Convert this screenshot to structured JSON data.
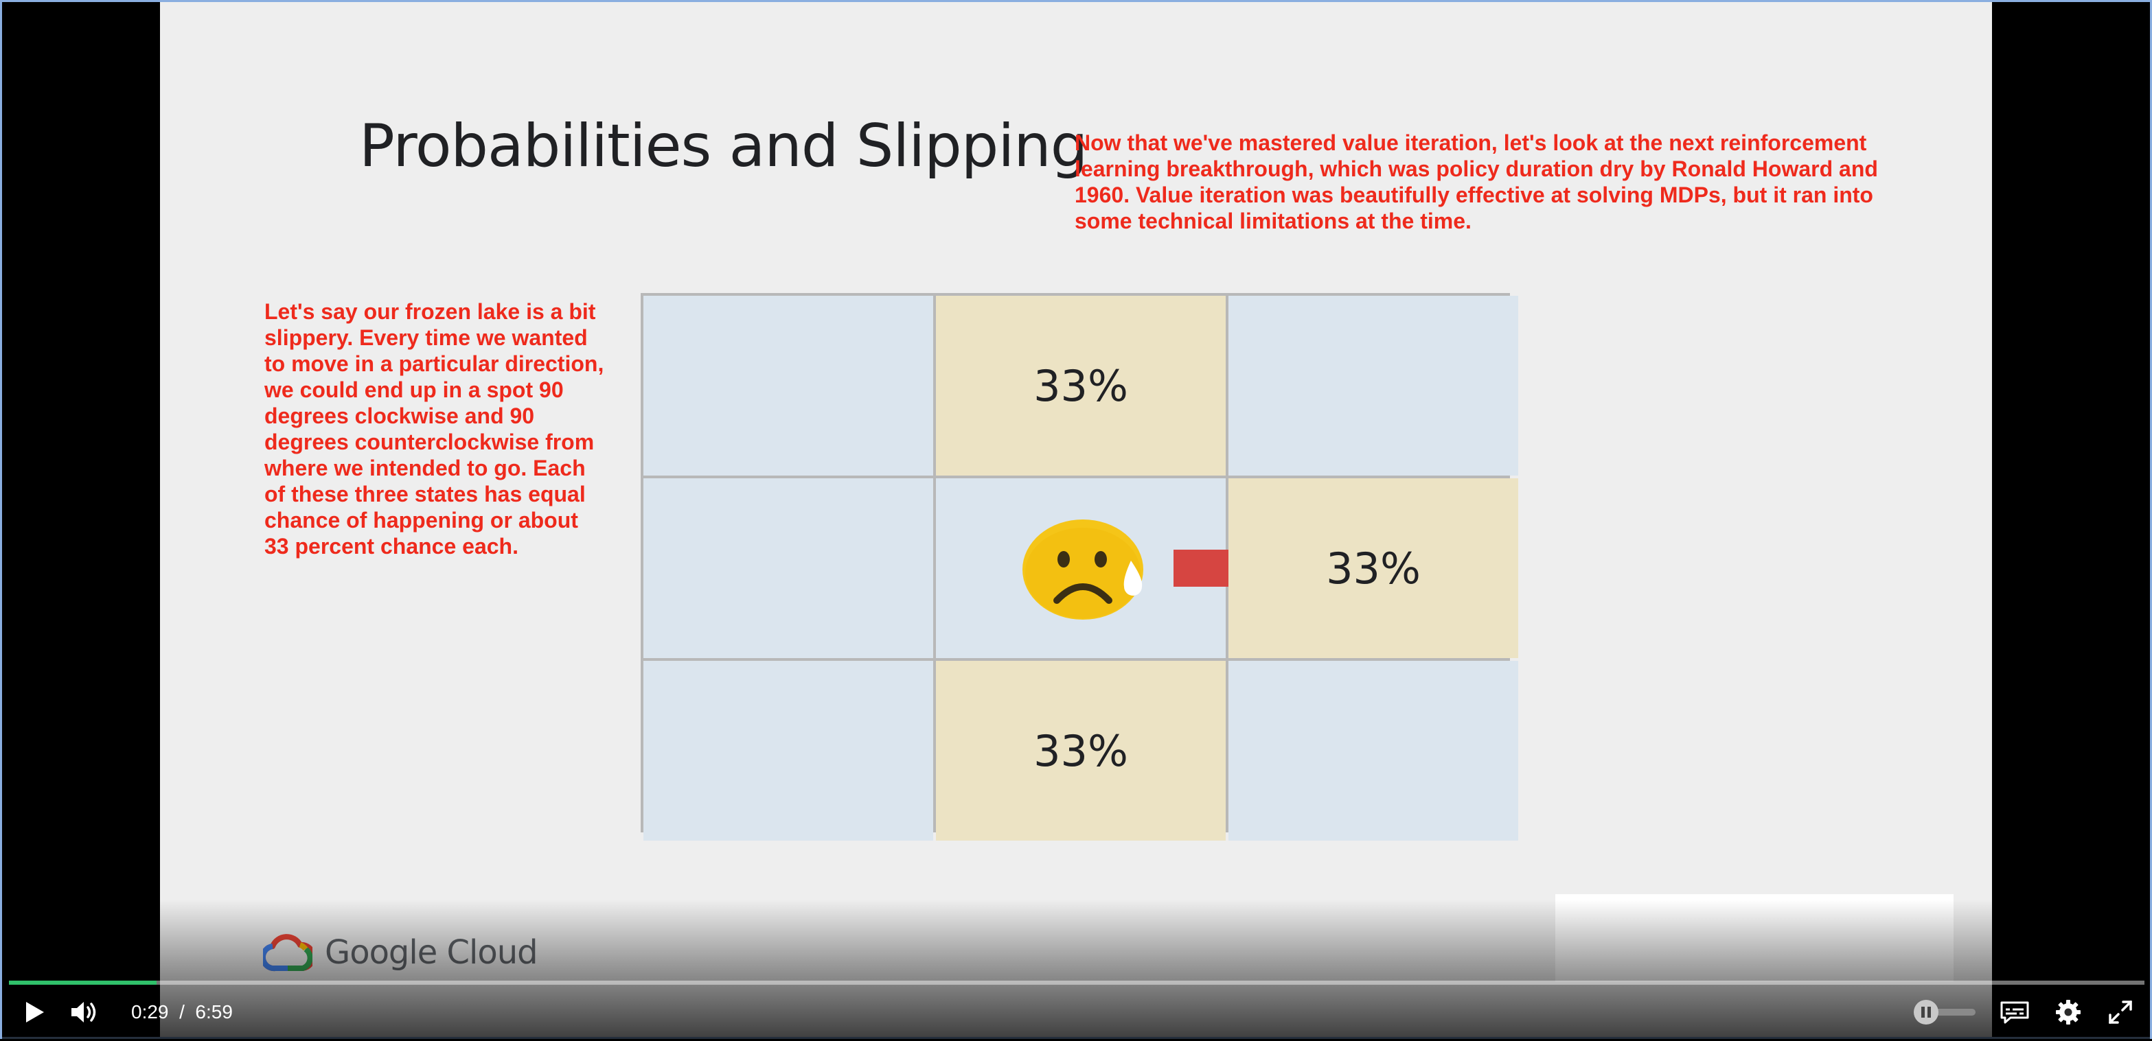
{
  "slide": {
    "title": "Probabilities and Slipping",
    "caption_top": "Now that we've mastered value iteration, let's look at the next reinforcement learning breakthrough, which was policy duration dry by Ronald Howard and 1960. Value iteration was beautifully effective at solving MDPs, but it ran into some technical limitations at the time.",
    "caption_left": "Let's say our frozen lake is a bit slippery. Every time we wanted to move in a particular direction, we could end up in a spot 90 degrees clockwise and 90 degrees counterclockwise from where we intended to go. Each of these three states has equal chance of happening or about 33 percent chance each.",
    "grid": {
      "top_center": "33%",
      "mid_right": "33%",
      "bottom_center": "33%"
    },
    "logo_text": "Google Cloud"
  },
  "player": {
    "current_time": "0:29",
    "separator": "/",
    "duration": "6:59",
    "progress_fraction": 0.069,
    "icons": {
      "play": "play-icon",
      "volume": "volume-icon",
      "speed": "speed-toggle-icon",
      "captions": "closed-captions-icon",
      "settings": "gear-icon",
      "fullscreen": "fullscreen-icon"
    }
  },
  "colors": {
    "caption": "#ee2a1c",
    "cell_default": "#dbe5ee",
    "cell_highlight": "#ece3c4",
    "progress": "#30c06a"
  }
}
